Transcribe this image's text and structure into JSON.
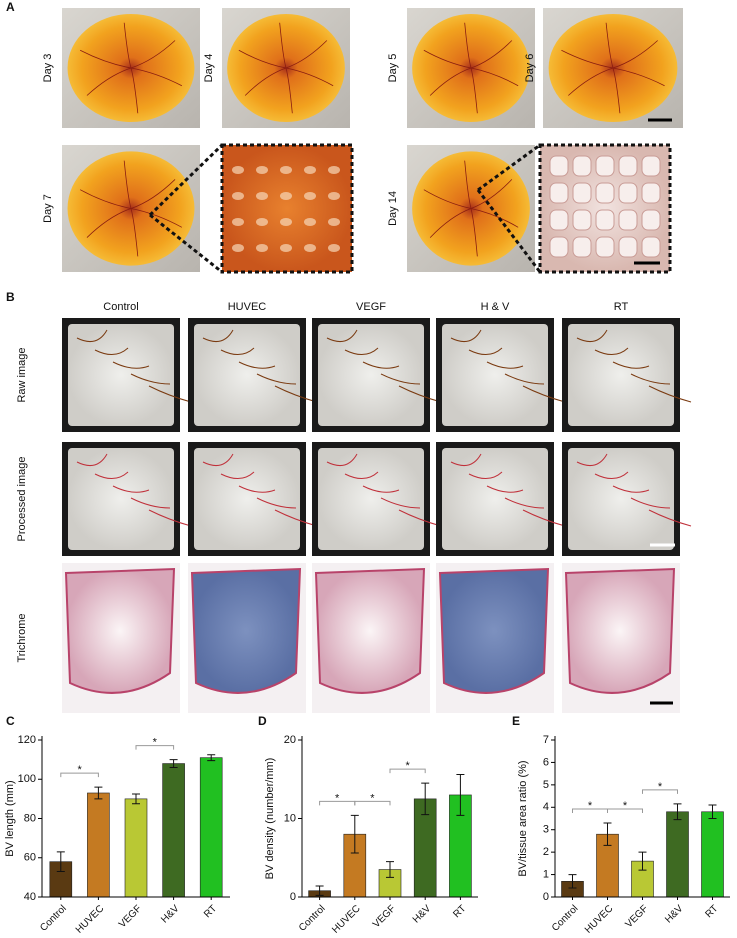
{
  "figure": {
    "A": {
      "label": "A",
      "photos": [
        "Day 3",
        "Day 4",
        "Day 5",
        "Day 6",
        "Day 7",
        "Day 14"
      ]
    },
    "B": {
      "label": "B",
      "columns": [
        "Control",
        "HUVEC",
        "VEGF",
        "H & V",
        "RT"
      ],
      "rows": [
        "Raw image",
        "Processed image",
        "Trichrome"
      ]
    }
  },
  "chart_data": [
    {
      "type": "bar",
      "panel_label": "C",
      "ylabel": "BV length (mm)",
      "categories": [
        "Control",
        "HUVEC",
        "VEGF",
        "H&V",
        "RT"
      ],
      "values": [
        58,
        93,
        90,
        108,
        111
      ],
      "errors": [
        5,
        3,
        2.5,
        2,
        1.5
      ],
      "colors": [
        "#5a3a12",
        "#c47a22",
        "#b9c834",
        "#3e6a22",
        "#21c021"
      ],
      "ylim": [
        40,
        120
      ],
      "yticks": [
        40,
        60,
        80,
        100,
        120
      ],
      "significance": [
        {
          "between": [
            "Control",
            "HUVEC"
          ],
          "label": "*"
        },
        {
          "between": [
            "VEGF",
            "H&V"
          ],
          "label": "*"
        }
      ]
    },
    {
      "type": "bar",
      "panel_label": "D",
      "ylabel": "BV density (number/mm)",
      "categories": [
        "Control",
        "HUVEC",
        "VEGF",
        "H&V",
        "RT"
      ],
      "values": [
        0.8,
        8,
        3.5,
        12.5,
        13
      ],
      "errors": [
        0.6,
        2.4,
        1,
        2,
        2.6
      ],
      "colors": [
        "#5a3a12",
        "#c47a22",
        "#b9c834",
        "#3e6a22",
        "#21c021"
      ],
      "ylim": [
        0,
        20
      ],
      "yticks": [
        0,
        10,
        20
      ],
      "significance": [
        {
          "between": [
            "Control",
            "HUVEC"
          ],
          "label": "*"
        },
        {
          "between": [
            "HUVEC",
            "VEGF"
          ],
          "label": "*"
        },
        {
          "between": [
            "VEGF",
            "H&V"
          ],
          "label": "*"
        }
      ]
    },
    {
      "type": "bar",
      "panel_label": "E",
      "ylabel": "BV/tissue area ratio (%)",
      "categories": [
        "Control",
        "HUVEC",
        "VEGF",
        "H&V",
        "RT"
      ],
      "values": [
        0.7,
        2.8,
        1.6,
        3.8,
        3.8
      ],
      "errors": [
        0.3,
        0.5,
        0.4,
        0.35,
        0.3
      ],
      "colors": [
        "#5a3a12",
        "#c47a22",
        "#b9c834",
        "#3e6a22",
        "#21c021"
      ],
      "ylim": [
        0,
        7
      ],
      "yticks": [
        0,
        1,
        2,
        3,
        4,
        5,
        6,
        7
      ],
      "significance": [
        {
          "between": [
            "Control",
            "HUVEC"
          ],
          "label": "*"
        },
        {
          "between": [
            "HUVEC",
            "VEGF"
          ],
          "label": "*"
        },
        {
          "between": [
            "VEGF",
            "H&V"
          ],
          "label": "*"
        }
      ]
    }
  ]
}
